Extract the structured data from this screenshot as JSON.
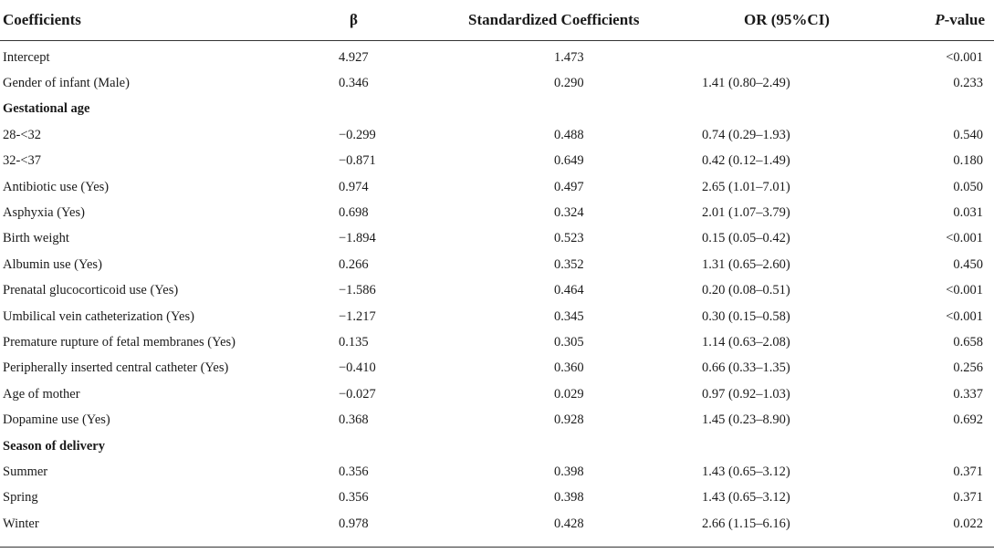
{
  "header": {
    "coefficients": "Coefficients",
    "beta": "β",
    "standardized": "Standardized Coefficients",
    "or": "OR (95%CI)",
    "p_prefix": "P",
    "p_suffix": "-value"
  },
  "rows": [
    {
      "name": "Intercept",
      "beta": "4.927",
      "std": "1.473",
      "or": "",
      "p": "<0.001"
    },
    {
      "name": "Gender of infant (Male)",
      "beta": "0.346",
      "std": "0.290",
      "or": "1.41 (0.80–2.49)",
      "p": "0.233"
    },
    {
      "name": "Gestational age",
      "section": true
    },
    {
      "name": "28-<32",
      "beta": "−0.299",
      "std": "0.488",
      "or": "0.74 (0.29–1.93)",
      "p": "0.540"
    },
    {
      "name": "32-<37",
      "beta": "−0.871",
      "std": "0.649",
      "or": "0.42 (0.12–1.49)",
      "p": "0.180"
    },
    {
      "name": "Antibiotic use (Yes)",
      "beta": "0.974",
      "std": "0.497",
      "or": "2.65 (1.01–7.01)",
      "p": "0.050"
    },
    {
      "name": "Asphyxia (Yes)",
      "beta": "0.698",
      "std": "0.324",
      "or": "2.01 (1.07–3.79)",
      "p": "0.031"
    },
    {
      "name": "Birth weight",
      "beta": "−1.894",
      "std": "0.523",
      "or": "0.15 (0.05–0.42)",
      "p": "<0.001"
    },
    {
      "name": "Albumin use (Yes)",
      "beta": "0.266",
      "std": "0.352",
      "or": "1.31 (0.65–2.60)",
      "p": "0.450"
    },
    {
      "name": "Prenatal glucocorticoid use (Yes)",
      "beta": "−1.586",
      "std": "0.464",
      "or": "0.20 (0.08–0.51)",
      "p": "<0.001"
    },
    {
      "name": "Umbilical vein catheterization (Yes)",
      "beta": "−1.217",
      "std": "0.345",
      "or": "0.30 (0.15–0.58)",
      "p": "<0.001"
    },
    {
      "name": "Premature rupture of fetal membranes (Yes)",
      "beta": "0.135",
      "std": "0.305",
      "or": "1.14 (0.63–2.08)",
      "p": "0.658"
    },
    {
      "name": "Peripherally inserted central catheter (Yes)",
      "beta": "−0.410",
      "std": "0.360",
      "or": "0.66 (0.33–1.35)",
      "p": "0.256"
    },
    {
      "name": "Age of mother",
      "beta": "−0.027",
      "std": "0.029",
      "or": "0.97 (0.92–1.03)",
      "p": "0.337"
    },
    {
      "name": "Dopamine use (Yes)",
      "beta": "0.368",
      "std": "0.928",
      "or": "1.45 (0.23–8.90)",
      "p": "0.692"
    },
    {
      "name": "Season of delivery",
      "section": true
    },
    {
      "name": "Summer",
      "beta": "0.356",
      "std": "0.398",
      "or": "1.43 (0.65–3.12)",
      "p": "0.371"
    },
    {
      "name": "Spring",
      "beta": "0.356",
      "std": "0.398",
      "or": "1.43 (0.65–3.12)",
      "p": "0.371"
    },
    {
      "name": "Winter",
      "beta": "0.978",
      "std": "0.428",
      "or": "2.66 (1.15–6.16)",
      "p": "0.022"
    }
  ]
}
